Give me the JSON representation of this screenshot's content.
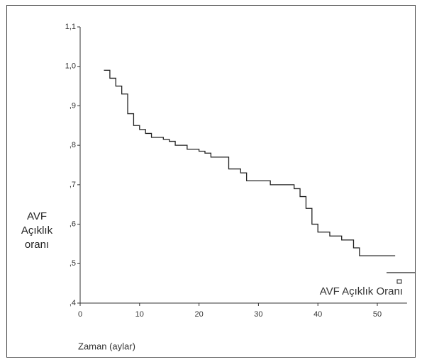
{
  "chart_data": {
    "type": "step",
    "xlabel": "Zaman (aylar)",
    "ylabel": "AVF Açıklık oranı",
    "xlim": [
      0,
      55
    ],
    "xticks": [
      0,
      10,
      20,
      30,
      40,
      50
    ],
    "ylim": [
      0.4,
      1.1
    ],
    "yticks": [
      {
        "value": 0.4,
        "label": ",4"
      },
      {
        "value": 0.5,
        "label": ",5"
      },
      {
        "value": 0.6,
        "label": ",6"
      },
      {
        "value": 0.7,
        "label": ",7"
      },
      {
        "value": 0.8,
        "label": ",8"
      },
      {
        "value": 0.9,
        "label": ",9"
      },
      {
        "value": 1.0,
        "label": "1,0"
      },
      {
        "value": 1.1,
        "label": "1,1"
      }
    ],
    "legend": "bottom-right",
    "series": [
      {
        "name": "AVF Açıklık Oranı",
        "color": "#222222",
        "x": [
          4,
          5,
          6,
          7,
          8,
          9,
          10,
          11,
          12,
          14,
          15,
          16,
          18,
          20,
          21,
          22,
          25,
          27,
          28,
          32,
          36,
          37,
          38,
          39,
          40,
          42,
          44,
          46,
          47,
          53
        ],
        "values": [
          0.99,
          0.97,
          0.95,
          0.93,
          0.88,
          0.85,
          0.84,
          0.83,
          0.82,
          0.815,
          0.81,
          0.8,
          0.79,
          0.785,
          0.78,
          0.77,
          0.74,
          0.73,
          0.71,
          0.7,
          0.69,
          0.67,
          0.64,
          0.6,
          0.58,
          0.57,
          0.56,
          0.54,
          0.52,
          0.52
        ]
      }
    ]
  }
}
